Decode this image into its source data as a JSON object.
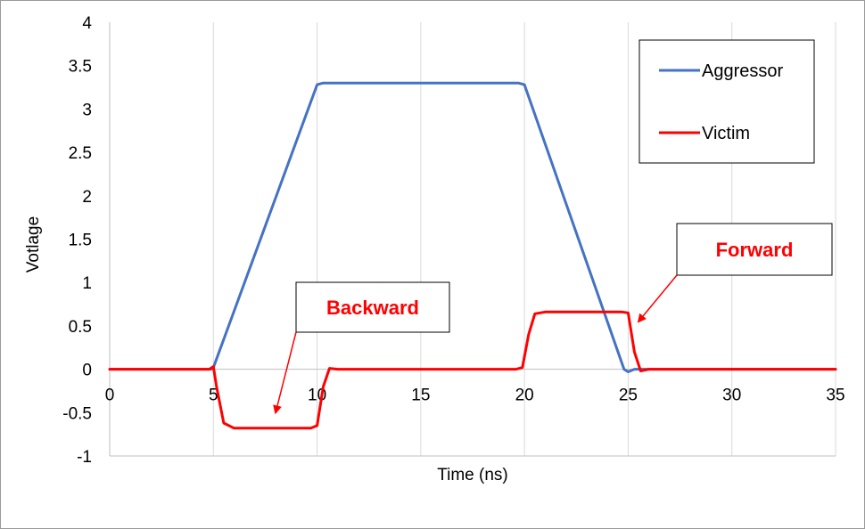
{
  "chart_data": {
    "type": "line",
    "title": "",
    "xlabel": "Time (ns)",
    "ylabel": "Votlage",
    "xlim": [
      0,
      35
    ],
    "ylim": [
      -1,
      4
    ],
    "x_ticks": [
      0,
      5,
      10,
      15,
      20,
      25,
      30,
      35
    ],
    "x_tick_labels": [
      "0",
      "5",
      "10",
      "15",
      "20",
      "25",
      "30",
      "35"
    ],
    "y_ticks": [
      -1,
      -0.5,
      0,
      0.5,
      1,
      1.5,
      2,
      2.5,
      3,
      3.5,
      4
    ],
    "y_tick_labels": [
      "-1",
      "-0.5",
      "0",
      "0.5",
      "1",
      "1.5",
      "2",
      "2.5",
      "3",
      "3.5",
      "4"
    ],
    "grid": "vertical",
    "legend_position": "top-right",
    "series": [
      {
        "name": "Aggressor",
        "color": "#4472c4",
        "x": [
          0,
          4.9,
          5.0,
          10.0,
          10.3,
          19.7,
          20.0,
          24.8,
          25.0,
          25.3,
          35
        ],
        "y": [
          0,
          0,
          0.02,
          3.28,
          3.3,
          3.3,
          3.28,
          0.0,
          -0.03,
          0,
          0
        ]
      },
      {
        "name": "Victim",
        "color": "#ff0000",
        "x": [
          0,
          4.8,
          5.0,
          5.15,
          5.5,
          6.0,
          9.7,
          10.0,
          10.3,
          10.6,
          11.0,
          19.6,
          19.9,
          20.2,
          20.5,
          21.0,
          24.7,
          25.0,
          25.3,
          25.6,
          26.0,
          35
        ],
        "y": [
          0,
          0,
          0.03,
          -0.2,
          -0.62,
          -0.68,
          -0.68,
          -0.65,
          -0.2,
          0.01,
          0,
          0,
          0.02,
          0.4,
          0.64,
          0.66,
          0.66,
          0.65,
          0.2,
          -0.02,
          0,
          0
        ]
      }
    ],
    "annotations": [
      {
        "text": "Backward",
        "arrow_to": [
          8.0,
          -0.5
        ]
      },
      {
        "text": "Forward",
        "arrow_to": [
          25.5,
          0.55
        ]
      }
    ]
  }
}
